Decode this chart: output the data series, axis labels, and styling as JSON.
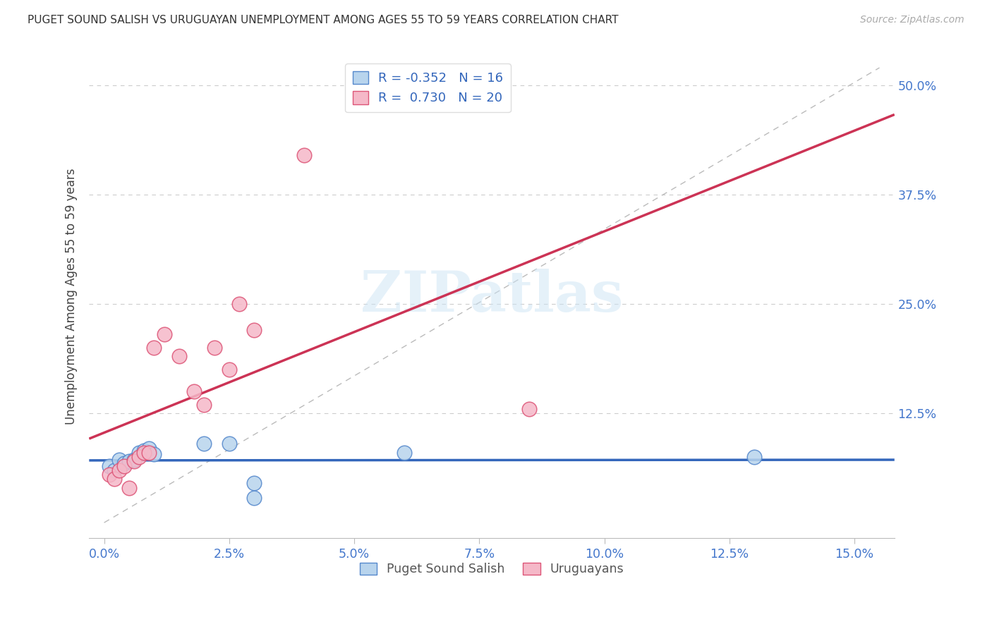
{
  "title": "PUGET SOUND SALISH VS URUGUAYAN UNEMPLOYMENT AMONG AGES 55 TO 59 YEARS CORRELATION CHART",
  "source": "Source: ZipAtlas.com",
  "ylabel": "Unemployment Among Ages 55 to 59 years",
  "legend_label1": "Puget Sound Salish",
  "legend_label2": "Uruguayans",
  "R1": "-0.352",
  "N1": "16",
  "R2": "0.730",
  "N2": "20",
  "blue_face": "#b8d4ed",
  "pink_face": "#f5b8c8",
  "blue_edge": "#5588cc",
  "pink_edge": "#dd5577",
  "blue_line": "#3366bb",
  "pink_line": "#cc3355",
  "diag_color": "#bbbbbb",
  "grid_color": "#cccccc",
  "bg": "#ffffff",
  "watermark": "ZIPatlas",
  "xlim": [
    0.0,
    0.155
  ],
  "ylim": [
    0.0,
    0.52
  ],
  "xticks": [
    0.0,
    0.025,
    0.05,
    0.075,
    0.1,
    0.125,
    0.15
  ],
  "xticklabels": [
    "0.0%",
    "2.5%",
    "5.0%",
    "7.5%",
    "10.0%",
    "12.5%",
    "15.0%"
  ],
  "yticks": [
    0.0,
    0.125,
    0.25,
    0.375,
    0.5
  ],
  "yticklabels": [
    "",
    "12.5%",
    "25.0%",
    "37.5%",
    "50.0%"
  ],
  "blue_x": [
    0.001,
    0.002,
    0.003,
    0.004,
    0.005,
    0.006,
    0.007,
    0.008,
    0.009,
    0.01,
    0.02,
    0.025,
    0.03,
    0.03,
    0.06,
    0.13
  ],
  "blue_y": [
    0.065,
    0.06,
    0.072,
    0.068,
    0.07,
    0.072,
    0.08,
    0.082,
    0.085,
    0.078,
    0.09,
    0.09,
    0.045,
    0.028,
    0.08,
    0.075
  ],
  "pink_x": [
    0.001,
    0.002,
    0.003,
    0.004,
    0.005,
    0.006,
    0.007,
    0.008,
    0.009,
    0.01,
    0.012,
    0.015,
    0.018,
    0.02,
    0.022,
    0.025,
    0.027,
    0.03,
    0.04,
    0.085
  ],
  "pink_y": [
    0.055,
    0.05,
    0.06,
    0.065,
    0.04,
    0.07,
    0.075,
    0.08,
    0.08,
    0.2,
    0.215,
    0.19,
    0.15,
    0.135,
    0.2,
    0.175,
    0.25,
    0.22,
    0.42,
    0.13
  ]
}
